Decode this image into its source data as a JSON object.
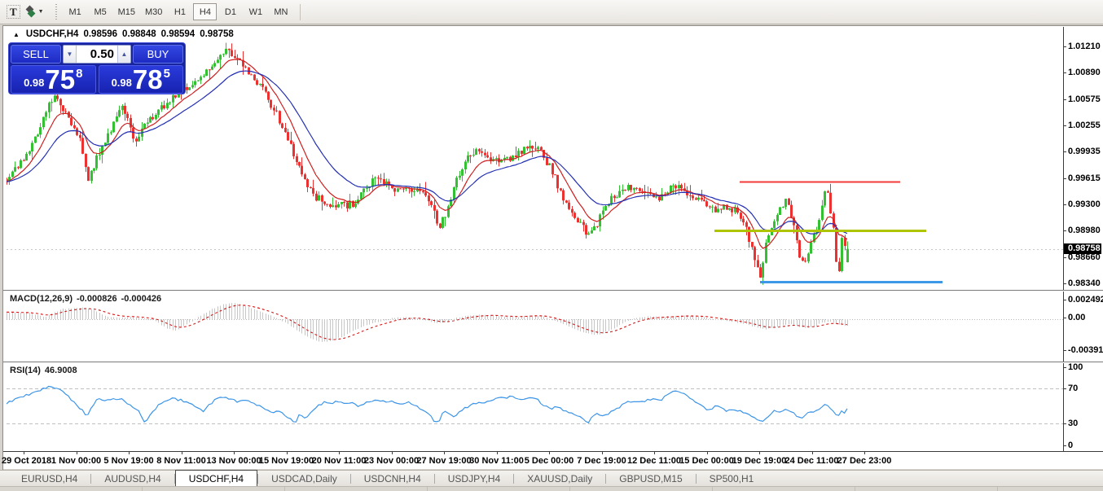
{
  "icons": {
    "symbol_marker": "▲",
    "dropdown": "▼",
    "volume_down": "▼",
    "volume_up": "▲"
  },
  "toolbar": {
    "text_tool": "T",
    "timeframes": [
      "M1",
      "M5",
      "M15",
      "M30",
      "H1",
      "H4",
      "D1",
      "W1",
      "MN"
    ],
    "active_timeframe": "H4"
  },
  "chart_header": {
    "symbol": "USDCHF,H4",
    "open": "0.98596",
    "high": "0.98848",
    "low": "0.98594",
    "close": "0.98758"
  },
  "trade_panel": {
    "sell_label": "SELL",
    "buy_label": "BUY",
    "volume": "0.50",
    "sell_price": {
      "base": "0.98",
      "big": "75",
      "sup": "8"
    },
    "buy_price": {
      "base": "0.98",
      "big": "78",
      "sup": "5"
    }
  },
  "price_axis": {
    "labels": [
      "1.01210",
      "1.00890",
      "1.00575",
      "1.00255",
      "0.99935",
      "0.99615",
      "0.99300",
      "0.98980",
      "0.98660",
      "0.98340"
    ],
    "y_top": 57,
    "y_bottom": 348,
    "current": "0.98758"
  },
  "macd": {
    "label": "MACD(12,26,9)",
    "value_main": "-0.000826",
    "value_signal": "-0.000426",
    "axis_labels": [
      [
        "0.002492",
        368
      ],
      [
        "0.00",
        390
      ],
      [
        "-0.003913",
        430
      ]
    ]
  },
  "rsi": {
    "label": "RSI(14)",
    "value": "46.9008",
    "axis_labels": [
      [
        "100",
        451
      ],
      [
        "70",
        477
      ],
      [
        "30",
        520
      ],
      [
        "0",
        547
      ]
    ]
  },
  "time_axis": {
    "labels": [
      "29 Oct 2018",
      "1 Nov 00:00",
      "5 Nov 19:00",
      "8 Nov 11:00",
      "13 Nov 00:00",
      "15 Nov 19:00",
      "20 Nov 11:00",
      "23 Nov 00:00",
      "27 Nov 19:00",
      "30 Nov 11:00",
      "5 Dec 00:00",
      "7 Dec 19:00",
      "12 Dec 11:00",
      "15 Dec 00:00",
      "19 Dec 19:00",
      "24 Dec 11:00",
      "27 Dec 23:00"
    ],
    "first_center": 29,
    "step": 64.5
  },
  "tabs": [
    "EURUSD,H4",
    "AUDUSD,H4",
    "USDCHF,H4",
    "USDCAD,Daily",
    "USDCNH,H4",
    "USDJPY,H4",
    "XAUUSD,Daily",
    "GBPUSD,M15",
    "SP500,H1"
  ],
  "active_tab": "USDCHF,H4",
  "colors": {
    "bull": "#33C133",
    "bear": "#EC3131",
    "ma_fast": "#D02020",
    "ma_slow": "#2531B4",
    "macd_hist": "#C6C6C6",
    "macd_signal": "#D01818",
    "rsi_line": "#3E96E8",
    "level_dash": "#C0C0C0",
    "bid_line": "#C8C8C8",
    "axis_text": "#000000",
    "tag_bg": "#000000"
  },
  "chart_data": {
    "type": "candlestick",
    "symbol": "USDCHF",
    "timeframe": "H4",
    "bars": 300,
    "x_range": [
      8,
      1040
    ],
    "price_to_y": {
      "price_top": 1.0121,
      "y_top": 57,
      "price_bottom": 0.9834,
      "y_bottom": 348
    },
    "last_bar": {
      "open": 0.98596,
      "high": 0.98848,
      "low": 0.98594,
      "close": 0.98758
    },
    "noise": {
      "close": 0.0009,
      "wick": 0.0013,
      "seed": 1337
    },
    "ma_fast_period": 10,
    "ma_slow_period": 24,
    "price_path": [
      [
        8,
        0.996
      ],
      [
        20,
        0.9974
      ],
      [
        32,
        0.999
      ],
      [
        45,
        1.0015
      ],
      [
        58,
        1.0048
      ],
      [
        68,
        1.0062
      ],
      [
        78,
        1.0045
      ],
      [
        88,
        1.0025
      ],
      [
        98,
        1.0008
      ],
      [
        108,
        0.9958
      ],
      [
        118,
        0.9985
      ],
      [
        130,
        1.001
      ],
      [
        140,
        1.003
      ],
      [
        150,
        1.0048
      ],
      [
        158,
        1.0028
      ],
      [
        166,
        1.0006
      ],
      [
        175,
        1.002
      ],
      [
        185,
        1.0035
      ],
      [
        200,
        1.0048
      ],
      [
        215,
        1.006
      ],
      [
        230,
        1.0072
      ],
      [
        245,
        1.008
      ],
      [
        258,
        1.0096
      ],
      [
        270,
        1.011
      ],
      [
        280,
        1.0118
      ],
      [
        290,
        1.0105
      ],
      [
        300,
        1.0095
      ],
      [
        312,
        1.0082
      ],
      [
        324,
        1.0065
      ],
      [
        336,
        1.0045
      ],
      [
        346,
        1.0025
      ],
      [
        356,
        1.0002
      ],
      [
        366,
        0.9975
      ],
      [
        376,
        0.9952
      ],
      [
        388,
        0.9938
      ],
      [
        400,
        0.9932
      ],
      [
        412,
        0.993
      ],
      [
        424,
        0.9928
      ],
      [
        436,
        0.9932
      ],
      [
        448,
        0.995
      ],
      [
        460,
        0.996
      ],
      [
        472,
        0.9955
      ],
      [
        484,
        0.9945
      ],
      [
        496,
        0.995
      ],
      [
        508,
        0.9946
      ],
      [
        520,
        0.994
      ],
      [
        530,
        0.993
      ],
      [
        538,
        0.99
      ],
      [
        546,
        0.9916
      ],
      [
        556,
        0.9948
      ],
      [
        566,
        0.9972
      ],
      [
        576,
        0.9988
      ],
      [
        586,
        0.9994
      ],
      [
        596,
        0.999
      ],
      [
        606,
        0.9982
      ],
      [
        616,
        0.998
      ],
      [
        626,
        0.9986
      ],
      [
        636,
        0.9992
      ],
      [
        646,
        0.9997
      ],
      [
        656,
        1.0
      ],
      [
        666,
        0.999
      ],
      [
        676,
        0.9972
      ],
      [
        686,
        0.995
      ],
      [
        696,
        0.9928
      ],
      [
        706,
        0.9912
      ],
      [
        716,
        0.99
      ],
      [
        724,
        0.9893
      ],
      [
        732,
        0.9905
      ],
      [
        742,
        0.9925
      ],
      [
        752,
        0.9938
      ],
      [
        762,
        0.9945
      ],
      [
        772,
        0.995
      ],
      [
        782,
        0.9948
      ],
      [
        792,
        0.9942
      ],
      [
        802,
        0.9936
      ],
      [
        812,
        0.994
      ],
      [
        822,
        0.9948
      ],
      [
        832,
        0.995
      ],
      [
        842,
        0.9944
      ],
      [
        852,
        0.9938
      ],
      [
        862,
        0.9934
      ],
      [
        872,
        0.9928
      ],
      [
        882,
        0.992
      ],
      [
        892,
        0.9928
      ],
      [
        902,
        0.9922
      ],
      [
        912,
        0.991
      ],
      [
        920,
        0.9885
      ],
      [
        928,
        0.9855
      ],
      [
        934,
        0.9843
      ],
      [
        940,
        0.9885
      ],
      [
        948,
        0.9905
      ],
      [
        956,
        0.992
      ],
      [
        964,
        0.9938
      ],
      [
        970,
        0.992
      ],
      [
        976,
        0.9895
      ],
      [
        982,
        0.9865
      ],
      [
        988,
        0.9858
      ],
      [
        994,
        0.988
      ],
      [
        1000,
        0.9893
      ],
      [
        1006,
        0.9915
      ],
      [
        1011,
        0.9945
      ],
      [
        1015,
        0.9952
      ],
      [
        1019,
        0.9925
      ],
      [
        1023,
        0.99
      ],
      [
        1027,
        0.9855
      ],
      [
        1030,
        0.9843
      ],
      [
        1033,
        0.989
      ],
      [
        1036,
        0.9885
      ],
      [
        1040,
        0.9876
      ]
    ],
    "trend_lines": [
      {
        "name": "resistance",
        "color": "#F23A3A",
        "width": 2,
        "price": 0.9957,
        "x1": 908,
        "x2": 1105
      },
      {
        "name": "mid-support",
        "color": "#AFC400",
        "width": 3,
        "price": 0.9898,
        "x1": 877,
        "x2": 1137
      },
      {
        "name": "low-support",
        "color": "#3D99E8",
        "width": 3,
        "price": 0.98355,
        "x1": 933,
        "x2": 1157
      }
    ],
    "macd": {
      "params": [
        12,
        26,
        9
      ],
      "last_main": -0.000826,
      "last_signal": -0.000426,
      "signal_period": 9,
      "axis_map": {
        "v_top": 0.002492,
        "y_top": 368,
        "v_bottom": -0.003913,
        "y_bottom": 430
      },
      "path": [
        [
          8,
          0.0009
        ],
        [
          35,
          0.0008
        ],
        [
          55,
          0.0003
        ],
        [
          75,
          0.0013
        ],
        [
          95,
          0.0015
        ],
        [
          110,
          0.0014
        ],
        [
          130,
          0.0004
        ],
        [
          145,
          0.0002
        ],
        [
          160,
          0.0003
        ],
        [
          175,
          0.0002
        ],
        [
          190,
          -0.0002
        ],
        [
          205,
          -0.0012
        ],
        [
          215,
          -0.0014
        ],
        [
          230,
          -0.0006
        ],
        [
          245,
          0.0004
        ],
        [
          260,
          0.0013
        ],
        [
          275,
          0.0019
        ],
        [
          285,
          0.0021
        ],
        [
          295,
          0.0019
        ],
        [
          310,
          0.0013
        ],
        [
          330,
          0.0006
        ],
        [
          350,
          -0.0004
        ],
        [
          370,
          -0.0018
        ],
        [
          385,
          -0.0026
        ],
        [
          395,
          -0.0029
        ],
        [
          405,
          -0.0028
        ],
        [
          420,
          -0.0022
        ],
        [
          435,
          -0.0014
        ],
        [
          450,
          -0.0007
        ],
        [
          465,
          -0.0003
        ],
        [
          480,
          0.0001
        ],
        [
          495,
          0.0003
        ],
        [
          510,
          0.0002
        ],
        [
          525,
          -0.0002
        ],
        [
          535,
          -0.0005
        ],
        [
          545,
          -0.0004
        ],
        [
          560,
          0.0002
        ],
        [
          575,
          0.0005
        ],
        [
          590,
          0.0006
        ],
        [
          605,
          0.0005
        ],
        [
          620,
          0.0003
        ],
        [
          635,
          0.0003
        ],
        [
          650,
          0.0005
        ],
        [
          665,
          0.0004
        ],
        [
          680,
          -0.0001
        ],
        [
          695,
          -0.0008
        ],
        [
          710,
          -0.0015
        ],
        [
          725,
          -0.0019
        ],
        [
          735,
          -0.002
        ],
        [
          750,
          -0.0013
        ],
        [
          765,
          -0.0005
        ],
        [
          780,
          0.0002
        ],
        [
          795,
          0.0004
        ],
        [
          810,
          0.0003
        ],
        [
          825,
          0.0004
        ],
        [
          840,
          0.0005
        ],
        [
          855,
          0.0004
        ],
        [
          870,
          0.0002
        ],
        [
          885,
          -0.0001
        ],
        [
          900,
          -0.0003
        ],
        [
          915,
          -0.0006
        ],
        [
          930,
          -0.0011
        ],
        [
          940,
          -0.0013
        ],
        [
          950,
          -0.001
        ],
        [
          960,
          -0.0007
        ],
        [
          970,
          -0.0006
        ],
        [
          980,
          -0.0009
        ],
        [
          990,
          -0.0011
        ],
        [
          1000,
          -0.0009
        ],
        [
          1010,
          -0.0004
        ],
        [
          1018,
          -0.0003
        ],
        [
          1026,
          -0.0006
        ],
        [
          1034,
          -0.0008
        ],
        [
          1040,
          -0.000826
        ]
      ]
    },
    "rsi": {
      "period": 14,
      "last": 46.9008,
      "levels": [
        70,
        30
      ],
      "axis_map": {
        "v1": 70,
        "y1": 477,
        "v2": 30,
        "y2": 520
      },
      "path": [
        [
          8,
          53
        ],
        [
          20,
          58
        ],
        [
          35,
          63
        ],
        [
          50,
          68
        ],
        [
          60,
          72
        ],
        [
          70,
          70
        ],
        [
          80,
          64
        ],
        [
          90,
          55
        ],
        [
          100,
          46
        ],
        [
          107,
          38
        ],
        [
          113,
          50
        ],
        [
          120,
          58
        ],
        [
          130,
          57
        ],
        [
          140,
          58
        ],
        [
          150,
          57
        ],
        [
          160,
          51
        ],
        [
          170,
          44
        ],
        [
          178,
          30
        ],
        [
          186,
          42
        ],
        [
          194,
          50
        ],
        [
          202,
          55
        ],
        [
          212,
          58
        ],
        [
          222,
          57
        ],
        [
          232,
          53
        ],
        [
          242,
          47
        ],
        [
          250,
          44
        ],
        [
          258,
          52
        ],
        [
          266,
          58
        ],
        [
          274,
          60
        ],
        [
          282,
          58
        ],
        [
          292,
          55
        ],
        [
          302,
          57
        ],
        [
          312,
          53
        ],
        [
          322,
          48
        ],
        [
          332,
          42
        ],
        [
          340,
          45
        ],
        [
          348,
          41
        ],
        [
          356,
          35
        ],
        [
          362,
          30
        ],
        [
          368,
          42
        ],
        [
          375,
          36
        ],
        [
          382,
          44
        ],
        [
          390,
          50
        ],
        [
          398,
          54
        ],
        [
          406,
          52
        ],
        [
          414,
          55
        ],
        [
          422,
          52
        ],
        [
          430,
          54
        ],
        [
          438,
          50
        ],
        [
          446,
          52
        ],
        [
          454,
          55
        ],
        [
          462,
          56
        ],
        [
          470,
          55
        ],
        [
          478,
          56
        ],
        [
          486,
          52
        ],
        [
          494,
          51
        ],
        [
          502,
          54
        ],
        [
          510,
          50
        ],
        [
          518,
          46
        ],
        [
          526,
          41
        ],
        [
          532,
          34
        ],
        [
          538,
          31
        ],
        [
          545,
          45
        ],
        [
          552,
          40
        ],
        [
          558,
          38
        ],
        [
          565,
          44
        ],
        [
          572,
          48
        ],
        [
          580,
          52
        ],
        [
          588,
          55
        ],
        [
          596,
          53
        ],
        [
          604,
          57
        ],
        [
          612,
          60
        ],
        [
          620,
          58
        ],
        [
          628,
          61
        ],
        [
          636,
          59
        ],
        [
          644,
          57
        ],
        [
          652,
          60
        ],
        [
          660,
          57
        ],
        [
          668,
          50
        ],
        [
          676,
          46
        ],
        [
          684,
          50
        ],
        [
          692,
          45
        ],
        [
          700,
          42
        ],
        [
          708,
          39
        ],
        [
          715,
          35
        ],
        [
          722,
          31
        ],
        [
          728,
          38
        ],
        [
          735,
          41
        ],
        [
          742,
          39
        ],
        [
          748,
          42
        ],
        [
          755,
          45
        ],
        [
          762,
          50
        ],
        [
          770,
          54
        ],
        [
          778,
          56
        ],
        [
          786,
          54
        ],
        [
          794,
          56
        ],
        [
          802,
          58
        ],
        [
          810,
          56
        ],
        [
          818,
          62
        ],
        [
          826,
          67
        ],
        [
          832,
          66
        ],
        [
          840,
          63
        ],
        [
          848,
          59
        ],
        [
          856,
          54
        ],
        [
          864,
          48
        ],
        [
          872,
          45
        ],
        [
          878,
          50
        ],
        [
          885,
          47
        ],
        [
          892,
          44
        ],
        [
          900,
          46
        ],
        [
          908,
          45
        ],
        [
          916,
          41
        ],
        [
          924,
          37
        ],
        [
          930,
          34
        ],
        [
          938,
          33
        ],
        [
          945,
          40
        ],
        [
          952,
          45
        ],
        [
          958,
          43
        ],
        [
          965,
          47
        ],
        [
          972,
          44
        ],
        [
          978,
          38
        ],
        [
          985,
          36
        ],
        [
          992,
          42
        ],
        [
          1000,
          44
        ],
        [
          1008,
          48
        ],
        [
          1013,
          52
        ],
        [
          1018,
          48
        ],
        [
          1024,
          42
        ],
        [
          1028,
          36
        ],
        [
          1032,
          44
        ],
        [
          1036,
          42
        ],
        [
          1040,
          46.9
        ]
      ]
    }
  }
}
